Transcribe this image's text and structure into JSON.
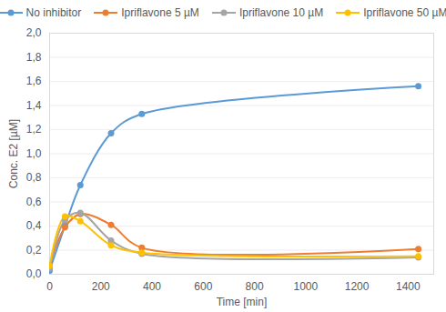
{
  "chart_data": {
    "type": "line",
    "x_label": "Time [min]",
    "y_label": "Conc. E2 [µM]",
    "x": [
      0,
      60,
      120,
      240,
      360,
      1440
    ],
    "series": [
      {
        "name": "No inhibitor",
        "color": "#5B9BD5",
        "values": [
          0.03,
          0.4,
          0.74,
          1.17,
          1.33,
          1.56
        ]
      },
      {
        "name": "Ipriflavone 5 µM",
        "color": "#ED7D31",
        "values": [
          0.07,
          0.39,
          0.5,
          0.41,
          0.22,
          0.21
        ]
      },
      {
        "name": "Ipriflavone 10 µM",
        "color": "#A5A5A5",
        "values": [
          0.05,
          0.45,
          0.51,
          0.28,
          0.17,
          0.14
        ]
      },
      {
        "name": "Ipriflavone 50 µM",
        "color": "#FFC000",
        "values": [
          0.07,
          0.48,
          0.44,
          0.24,
          0.18,
          0.15
        ]
      }
    ],
    "xlim": [
      0,
      1500
    ],
    "xticks": [
      0,
      200,
      400,
      600,
      800,
      1000,
      1200,
      1400
    ],
    "ylim": [
      0,
      2
    ],
    "yticks": [
      {
        "value": 0,
        "label": "0,0"
      },
      {
        "value": 0.2,
        "label": "0,2"
      },
      {
        "value": 0.4,
        "label": "0,4"
      },
      {
        "value": 0.6,
        "label": "0,6"
      },
      {
        "value": 0.8,
        "label": "0,8"
      },
      {
        "value": 1.0,
        "label": "1,0"
      },
      {
        "value": 1.2,
        "label": "1,2"
      },
      {
        "value": 1.4,
        "label": "1,4"
      },
      {
        "value": 1.6,
        "label": "1,6"
      },
      {
        "value": 1.8,
        "label": "1,8"
      },
      {
        "value": 2.0,
        "label": "2,0"
      }
    ],
    "grid": true,
    "legend": "top",
    "marker": "circle",
    "line_style": "solid"
  }
}
